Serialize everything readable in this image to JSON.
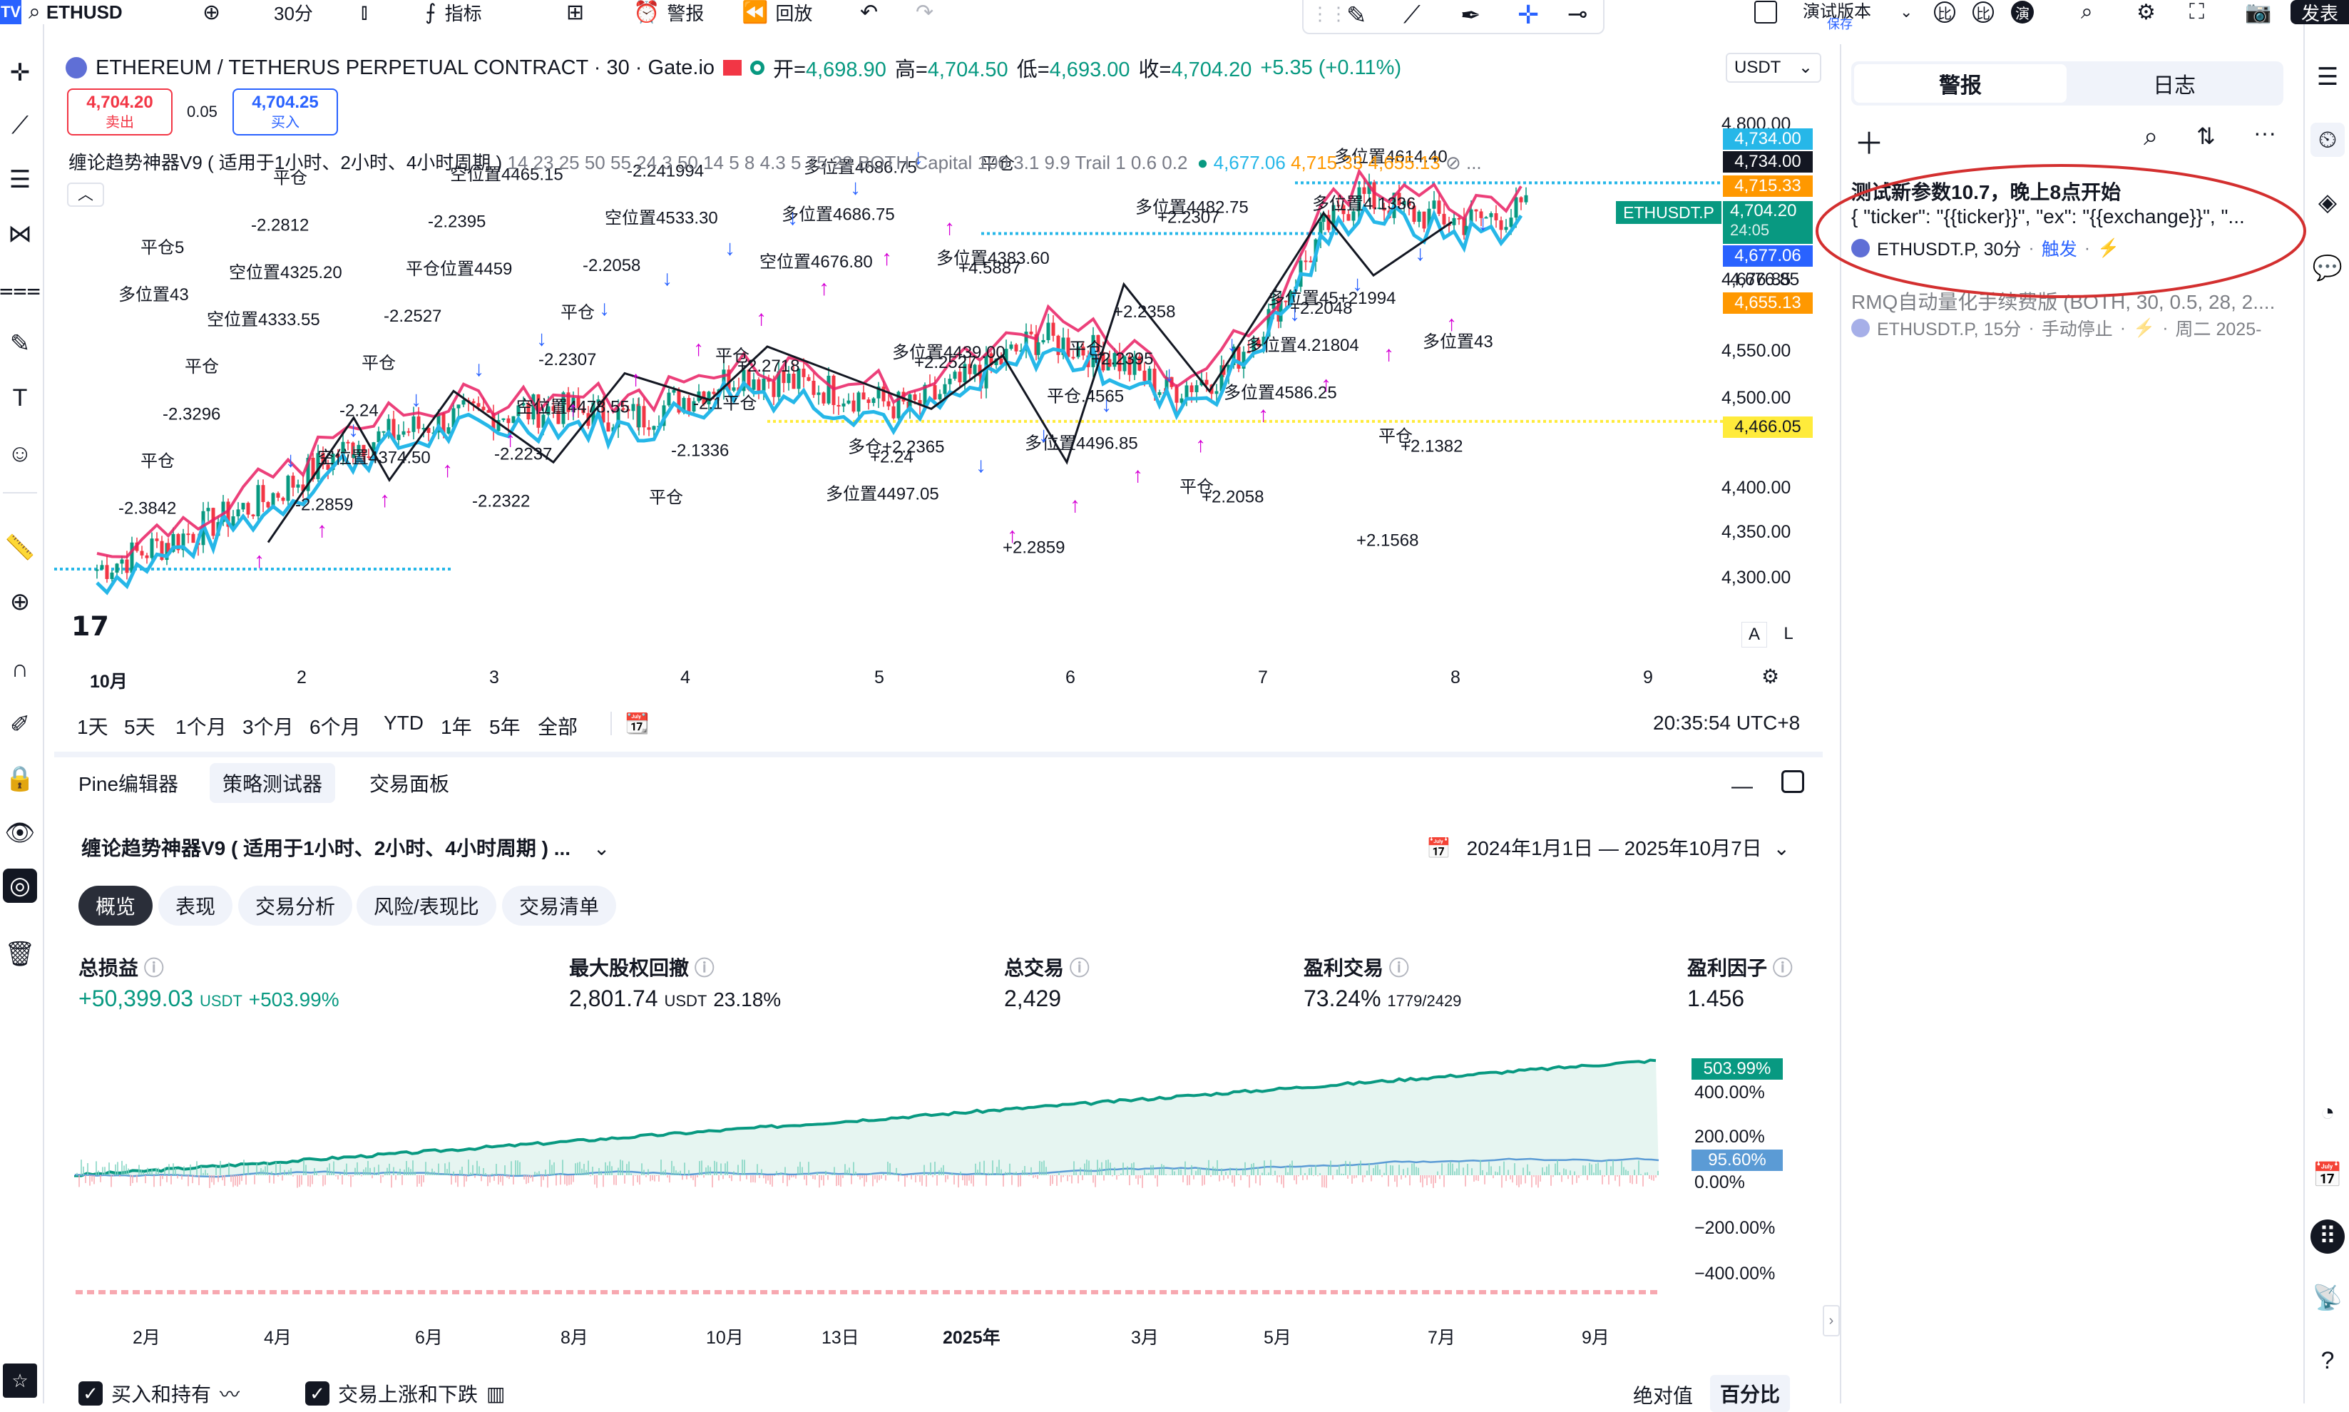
{
  "topbar": {
    "logo": "TV",
    "symbol": "ETHUSD",
    "interval": "30分",
    "indicators": "指标",
    "alerts": "警报",
    "replay": "回放",
    "mode": "演试版本",
    "mode_sub": "保存",
    "btn_compare1": "比",
    "btn_compare2": "比",
    "btn_demo": "演",
    "publish": "发表"
  },
  "legend": {
    "title": "ETHEREUM / TETHERUS PERPETUAL CONTRACT · 30 · Gate.io",
    "open_label": "开=",
    "open": "4,698.90",
    "high_label": "高=",
    "high": "4,704.50",
    "low_label": "低=",
    "low": "4,693.00",
    "close_label": "收=",
    "close": "4,704.20",
    "change": "+5.35 (+0.11%)",
    "sell_price": "4,704.20",
    "sell_label": "卖出",
    "spread": "0.05",
    "buy_price": "4,704.25",
    "buy_label": "买入",
    "currency": "USDT"
  },
  "indicator": {
    "name": "缠论趋势神器V9 ( 适用于1小时、2小时、4小时周期 )",
    "params": "14 23 25 50 55 24 3 50 14 5 8 4.3 5 75 22 BOTH Capital 100 3.1 9.9 Trail 1 0.6 0.2",
    "val1": "4,677.06",
    "val2": "4,715.33",
    "val3": "4,655.13"
  },
  "price_axis": [
    "4,800.00",
    "4,734.00",
    "4,734.00",
    "4,715.33",
    "4,704.20",
    "4,677.06",
    "4,676.85",
    "4,655.13",
    "4,550.00",
    "4,500.00",
    "4,466.05",
    "4,400.00",
    "4,350.00",
    "4,300.00"
  ],
  "price_labels": {
    "symbol_tag": "ETHUSDT.P",
    "last": "4,704.20",
    "countdown": "24:05",
    "p_4734a": "4,734.00",
    "p_4734b": "4,734.00",
    "p_4715": "4,715.33",
    "p_4677": "4,677.06",
    "p_4655": "4,655.13",
    "p_4466": "4,466.05"
  },
  "time_axis": [
    "10月",
    "2",
    "3",
    "4",
    "5",
    "6",
    "7",
    "8",
    "9"
  ],
  "chart_buttons": {
    "auto": "A",
    "log": "L"
  },
  "ranges": [
    "1天",
    "5天",
    "1个月",
    "3个月",
    "6个月",
    "YTD",
    "1年",
    "5年",
    "全部"
  ],
  "clock": "20:35:54 UTC+8",
  "annotations": [
    {
      "t": "-2.3842",
      "k": "n"
    },
    {
      "t": "平仓",
      "k": "n"
    },
    {
      "t": "-2.3296",
      "k": "n"
    },
    {
      "t": "平仓",
      "k": "n"
    },
    {
      "t": "空位置4333.55",
      "k": "n"
    },
    {
      "t": "空位置4325.20",
      "k": "n"
    },
    {
      "t": "-2.2812",
      "k": "n"
    },
    {
      "t": "平仓",
      "k": "n"
    },
    {
      "t": "-2.2859",
      "k": "n"
    },
    {
      "t": "空位置4374.50",
      "k": "n"
    },
    {
      "t": "-2.24",
      "k": "n"
    },
    {
      "t": "平仓",
      "k": "n"
    },
    {
      "t": "-2.2527",
      "k": "n"
    },
    {
      "t": "平仓位置4459",
      "k": "n"
    },
    {
      "t": "-2.2395",
      "k": "n"
    },
    {
      "t": "空位置4465.15",
      "k": "n"
    },
    {
      "t": "-2.2322",
      "k": "n"
    },
    {
      "t": "-2.2237",
      "k": "n"
    },
    {
      "t": "空位置4478.55",
      "k": "n"
    },
    {
      "t": "-2.2307",
      "k": "n"
    },
    {
      "t": "平仓",
      "k": "n"
    },
    {
      "t": "-2.2058",
      "k": "n"
    },
    {
      "t": "空位置4533.30",
      "k": "n"
    },
    {
      "t": "-2.241994",
      "k": "n"
    },
    {
      "t": "平仓",
      "k": "n"
    },
    {
      "t": "-2.1336",
      "k": "n"
    },
    {
      "t": "-2.1平仓",
      "k": "n"
    },
    {
      "t": "平仓",
      "k": "n"
    },
    {
      "t": "+2.2718",
      "k": "p"
    },
    {
      "t": "空位置4676.80",
      "k": "n"
    },
    {
      "t": "多位置4686.75",
      "k": "n"
    },
    {
      "t": "多位置4686.75",
      "k": "n"
    },
    {
      "t": "多位置4497.05",
      "k": "n"
    },
    {
      "t": "多仓+2.2365",
      "k": "n"
    },
    {
      "t": "+2.24",
      "k": "p"
    },
    {
      "t": "多位置4439.00",
      "k": "n"
    },
    {
      "t": "+2.2527",
      "k": "p"
    },
    {
      "t": "多位置4383.60",
      "k": "n"
    },
    {
      "t": "+4.5887",
      "k": "p"
    },
    {
      "t": "平仓",
      "k": "n"
    },
    {
      "t": "+2.2859",
      "k": "p"
    },
    {
      "t": "多位置4496.85",
      "k": "n"
    },
    {
      "t": "平仓.4565",
      "k": "n"
    },
    {
      "t": "平仓",
      "k": "n"
    },
    {
      "t": "+2.2395",
      "k": "p"
    },
    {
      "t": "+2.2358",
      "k": "p"
    },
    {
      "t": "多位置4482.75",
      "k": "n"
    },
    {
      "t": "+2.2307",
      "k": "p"
    },
    {
      "t": "平仓",
      "k": "n"
    },
    {
      "t": "+2.2058",
      "k": "p"
    },
    {
      "t": "多位置4586.25",
      "k": "n"
    },
    {
      "t": "多位置4.21804",
      "k": "n"
    },
    {
      "t": "多位置45+21994",
      "k": "n"
    },
    {
      "t": "+2.2048",
      "k": "p"
    },
    {
      "t": "多位置4.1336",
      "k": "n"
    },
    {
      "t": "多位置4614.40",
      "k": "n"
    },
    {
      "t": "+2.1568",
      "k": "p"
    },
    {
      "t": "平仓",
      "k": "n"
    },
    {
      "t": "+2.1382",
      "k": "p"
    },
    {
      "t": "多位置43",
      "k": "n"
    },
    {
      "t": "多位置43",
      "k": "n"
    },
    {
      "t": "平仓5",
      "k": "n"
    }
  ],
  "bottom": {
    "tabs": [
      "Pine编辑器",
      "策略测试器",
      "交易面板"
    ],
    "strategy_name": "缠论趋势神器V9 ( 适用于1小时、2小时、4小时周期 ) ...",
    "date_range": "2024年1月1日 — 2025年10月7日",
    "pills": [
      "概览",
      "表现",
      "交易分析",
      "风险/表现比",
      "交易清单"
    ],
    "metrics": [
      {
        "title": "总损益",
        "value": "+50,399.03",
        "unit": "USDT",
        "extra": "+503.99%"
      },
      {
        "title": "最大股权回撤",
        "value": "2,801.74",
        "unit": "USDT",
        "extra": "23.18%"
      },
      {
        "title": "总交易",
        "value": "2,429",
        "unit": "",
        "extra": ""
      },
      {
        "title": "盈利交易",
        "value": "73.24%",
        "unit": "",
        "extra": "1779/2429"
      },
      {
        "title": "盈利因子",
        "value": "1.456",
        "unit": "",
        "extra": ""
      }
    ],
    "pct_axis": [
      "400.00%",
      "200.00%",
      "0.00%",
      "−200.00%",
      "−400.00%"
    ],
    "eq_label": "503.99%",
    "bh_label": "95.60%",
    "months": [
      "2月",
      "4月",
      "6月",
      "8月",
      "10月",
      "13日",
      "2025年",
      "3月",
      "5月",
      "7月",
      "9月"
    ],
    "check1": "买入和持有",
    "check2": "交易上涨和下跌",
    "abs": "绝对值",
    "pct": "百分比"
  },
  "alerts": {
    "tab_alerts": "警报",
    "tab_log": "日志",
    "item1_title": "测试新参数10.7，晚上8点开始",
    "item1_body": "{ \"ticker\": \"{{ticker}}\", \"ex\": \"{{exchange}}\", \"...",
    "item1_meta": "ETHUSDT.P, 30分",
    "item1_status": "触发",
    "item2_title": "RMQ自动量化手续费版 (BOTH, 30, 0.5, 28, 2....",
    "item2_meta": "ETHUSDT.P, 15分",
    "item2_status": "手动停止",
    "item2_date": "周二 2025-"
  },
  "colors": {
    "up": "#089981",
    "down": "#f23645",
    "accent_blue": "#2962ff",
    "magenta": "#d500d5",
    "cyan_line": "#26b7e8",
    "red_line": "#e91e63",
    "equity": "#089981",
    "buyhold": "#5b9bd5",
    "circle": "#d32f2f"
  }
}
